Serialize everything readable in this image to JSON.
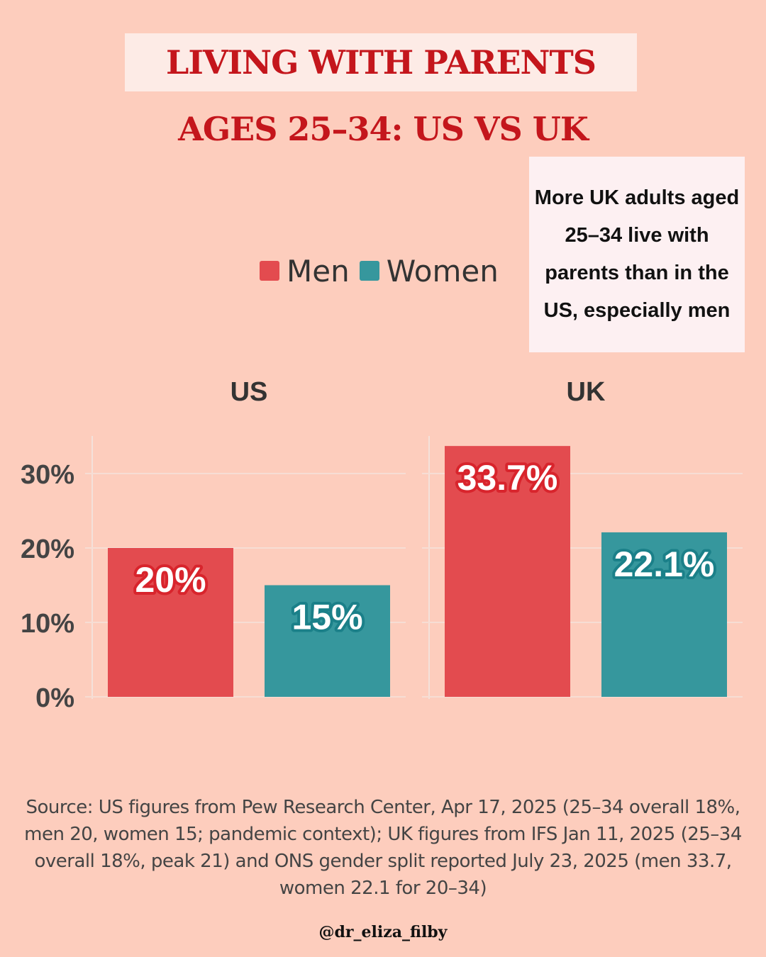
{
  "header": {
    "title": "LIVING WITH PARENTS",
    "subtitle": "AGES 25–34: US VS UK"
  },
  "callout": {
    "text": "More UK adults aged 25–34 live with parents than in the US, especially men"
  },
  "legend": {
    "items": [
      {
        "label": "Men",
        "color": "#e34b4f"
      },
      {
        "label": "Women",
        "color": "#36979d"
      }
    ]
  },
  "chart_data": {
    "type": "bar",
    "facets": [
      "US",
      "UK"
    ],
    "categories": [
      "Men",
      "Women"
    ],
    "series": [
      {
        "facet": "US",
        "values": [
          20,
          15
        ],
        "labels": [
          "20%",
          "15%"
        ]
      },
      {
        "facet": "UK",
        "values": [
          33.7,
          22.1
        ],
        "labels": [
          "33.7%",
          "22.1%"
        ]
      }
    ],
    "colors": {
      "Men": "#e34b4f",
      "Women": "#36979d"
    },
    "label_stroke": {
      "Men": "#d8242c",
      "Women": "#1b8089"
    },
    "yticks": [
      0,
      10,
      20,
      30
    ],
    "ytick_labels": [
      "0%",
      "10%",
      "20%",
      "30%"
    ],
    "ylim": [
      0,
      35
    ],
    "grid": true,
    "legend_position": "top"
  },
  "footer": {
    "source": "Source: US figures from Pew Research Center, Apr 17, 2025 (25–34 overall 18%, men 20, women 15; pandemic context); UK figures from IFS Jan 11, 2025 (25–34 overall 18%, peak 21) and ONS gender split reported July 23, 2025 (men 33.7, women 22.1 for 20–34)",
    "handle": "@dr_eliza_filby"
  }
}
